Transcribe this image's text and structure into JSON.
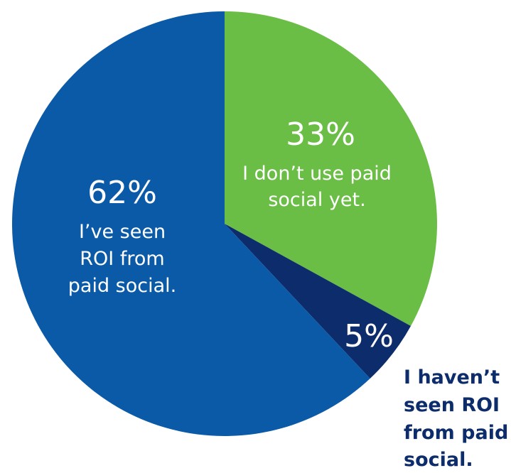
{
  "chart_data": {
    "type": "pie",
    "start_angle_deg": 0,
    "direction": "clockwise",
    "slices": [
      {
        "value": 33,
        "value_label": "33%",
        "label_lines": [
          "I don’t use paid",
          "social yet."
        ],
        "color": "#6abd45",
        "label_placement": "inside"
      },
      {
        "value": 5,
        "value_label": "5%",
        "label_lines": [
          "I haven’t",
          "seen ROI",
          "from paid",
          "social."
        ],
        "color": "#0d2c6c",
        "label_placement": "outside"
      },
      {
        "value": 62,
        "value_label": "62%",
        "label_lines": [
          "I’ve seen",
          "ROI from",
          "paid social."
        ],
        "color": "#0b5aa8",
        "label_placement": "inside"
      }
    ]
  }
}
